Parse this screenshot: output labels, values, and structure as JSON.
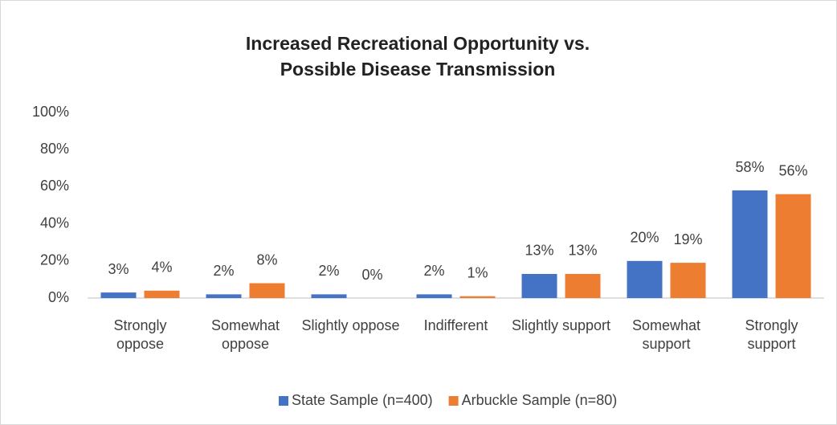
{
  "chart_data": {
    "type": "bar",
    "title": "Increased Recreational Opportunity vs. Possible Disease Transmission",
    "categories": [
      "Strongly oppose",
      "Somewhat oppose",
      "Slightly oppose",
      "Indifferent",
      "Slightly support",
      "Somewhat support",
      "Strongly support"
    ],
    "series": [
      {
        "name": "State Sample (n=400)",
        "color": "#4472c4",
        "values": [
          3,
          2,
          2,
          2,
          13,
          20,
          58
        ],
        "value_labels": [
          "3%",
          "2%",
          "2%",
          "2%",
          "13%",
          "20%",
          "58%"
        ]
      },
      {
        "name": "Arbuckle Sample (n=80)",
        "color": "#ed7d31",
        "values": [
          4,
          8,
          0,
          1,
          13,
          19,
          56
        ],
        "value_labels": [
          "4%",
          "8%",
          "0%",
          "1%",
          "13%",
          "19%",
          "56%"
        ]
      }
    ],
    "ylim": [
      0,
      100
    ],
    "yticks": [
      {
        "value": 0,
        "label": "0%"
      },
      {
        "value": 20,
        "label": "20%"
      },
      {
        "value": 40,
        "label": "40%"
      },
      {
        "value": 60,
        "label": "60%"
      },
      {
        "value": 80,
        "label": "80%"
      },
      {
        "value": 100,
        "label": "100%"
      }
    ],
    "grid": false,
    "legend": "bottom"
  }
}
